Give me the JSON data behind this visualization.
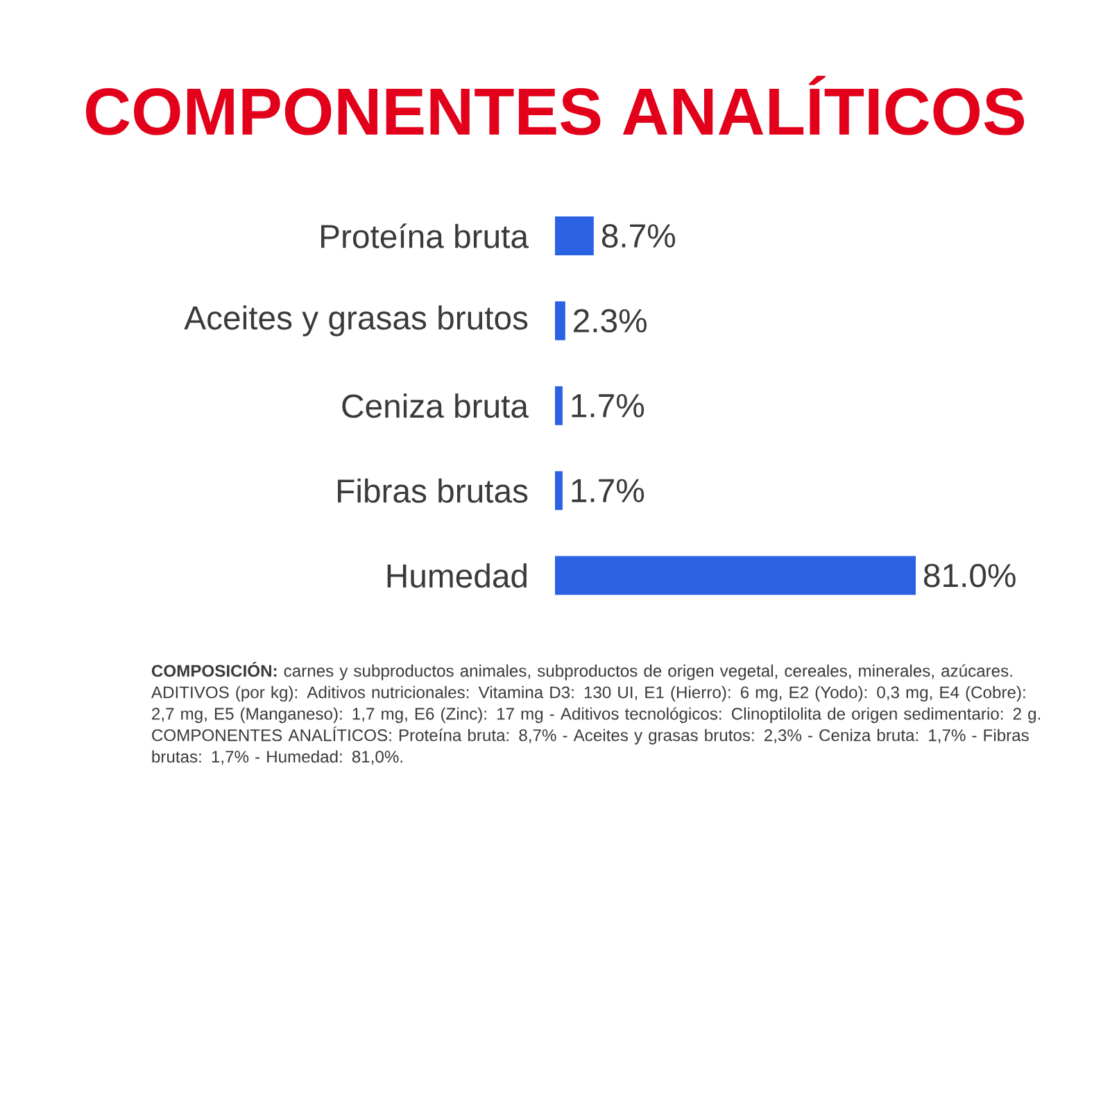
{
  "chart_data": {
    "type": "bar",
    "orientation": "horizontal",
    "title": "COMPONENTES ANALÍTICOS",
    "categories": [
      "Proteína bruta",
      "Aceites y grasas brutos",
      "Ceniza bruta",
      "Fibras brutas",
      "Humedad"
    ],
    "values": [
      8.7,
      2.3,
      1.7,
      1.7,
      81.0
    ],
    "value_labels": [
      "8.7%",
      "2.3%",
      "1.7%",
      "1.7%",
      "81.0%"
    ],
    "color": "#2b62e3",
    "annotations": [
      "**COMPOSICIÓN:** carnes y subproductos animales, subproductos de origen vegetal, cereales, minerales, azúcares. ADITIVOS (por kg): Aditivos nutricionales: Vitamina D3: 130 UI, E1 (Hierro): 6 mg, E2 (Yodo): 0,3 mg, E4 (Cobre): 2,7 mg, E5 (Manganeso): 1,7 mg, E6 (Zinc): 17 mg - Aditivos tecnológicos: Clinoptilolita de origen sedimentario: 2 g. COMPONENTES ANALÍTICOS: Proteína bruta: 8,7% - Aceites y grasas brutos: 2,3% - Ceniza bruta: 1,7% - Fibras brutas: 1,7% - Humedad: 81,0%."
    ]
  }
}
